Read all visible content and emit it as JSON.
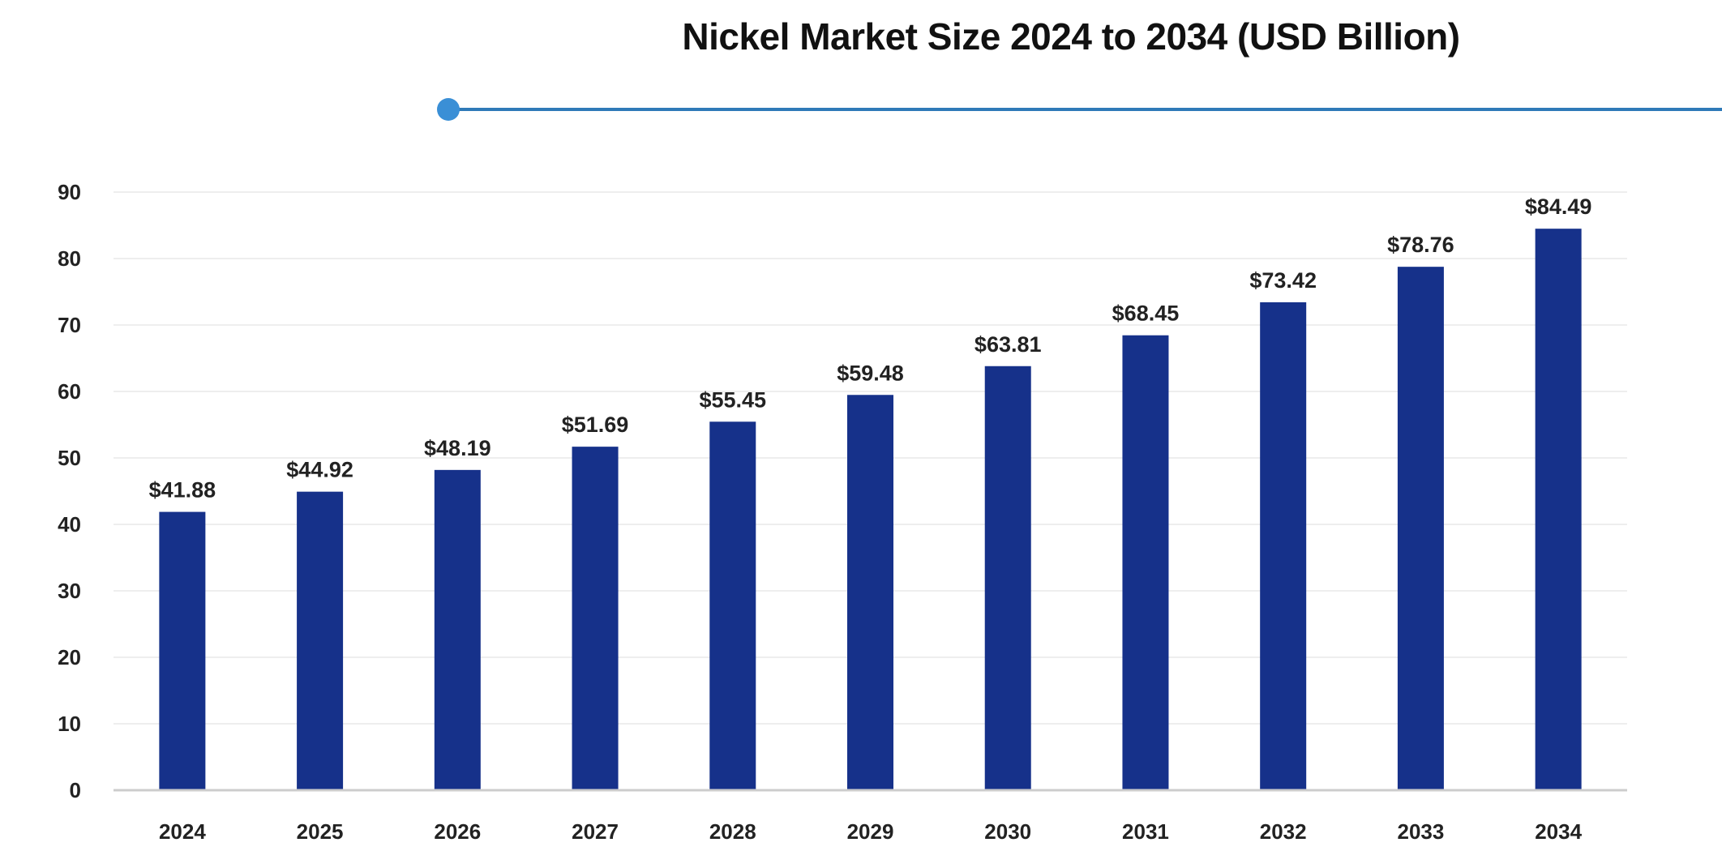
{
  "chart_data": {
    "type": "bar",
    "title": "Nickel Market Size 2024 to 2034 (USD Billion)",
    "categories": [
      "2024",
      "2025",
      "2026",
      "2027",
      "2028",
      "2029",
      "2030",
      "2031",
      "2032",
      "2033",
      "2034"
    ],
    "values": [
      41.88,
      44.92,
      48.19,
      51.69,
      55.45,
      59.48,
      63.81,
      68.45,
      73.42,
      78.76,
      84.49
    ],
    "data_labels": [
      "$41.88",
      "$44.92",
      "$48.19",
      "$51.69",
      "$55.45",
      "$59.48",
      "$63.81",
      "$68.45",
      "$73.42",
      "$78.76",
      "$84.49"
    ],
    "xlabel": "",
    "ylabel": "",
    "ylim": [
      0,
      90
    ],
    "yticks": [
      "0",
      "10",
      "20",
      "30",
      "40",
      "50",
      "60",
      "70",
      "80",
      "90"
    ],
    "grid": true,
    "colors": {
      "bar": "#16318a",
      "accent_line": "#2f7ab8",
      "accent_dot": "#3a8fd6",
      "grid": "#eeeeee",
      "axis": "#cccccc"
    }
  }
}
